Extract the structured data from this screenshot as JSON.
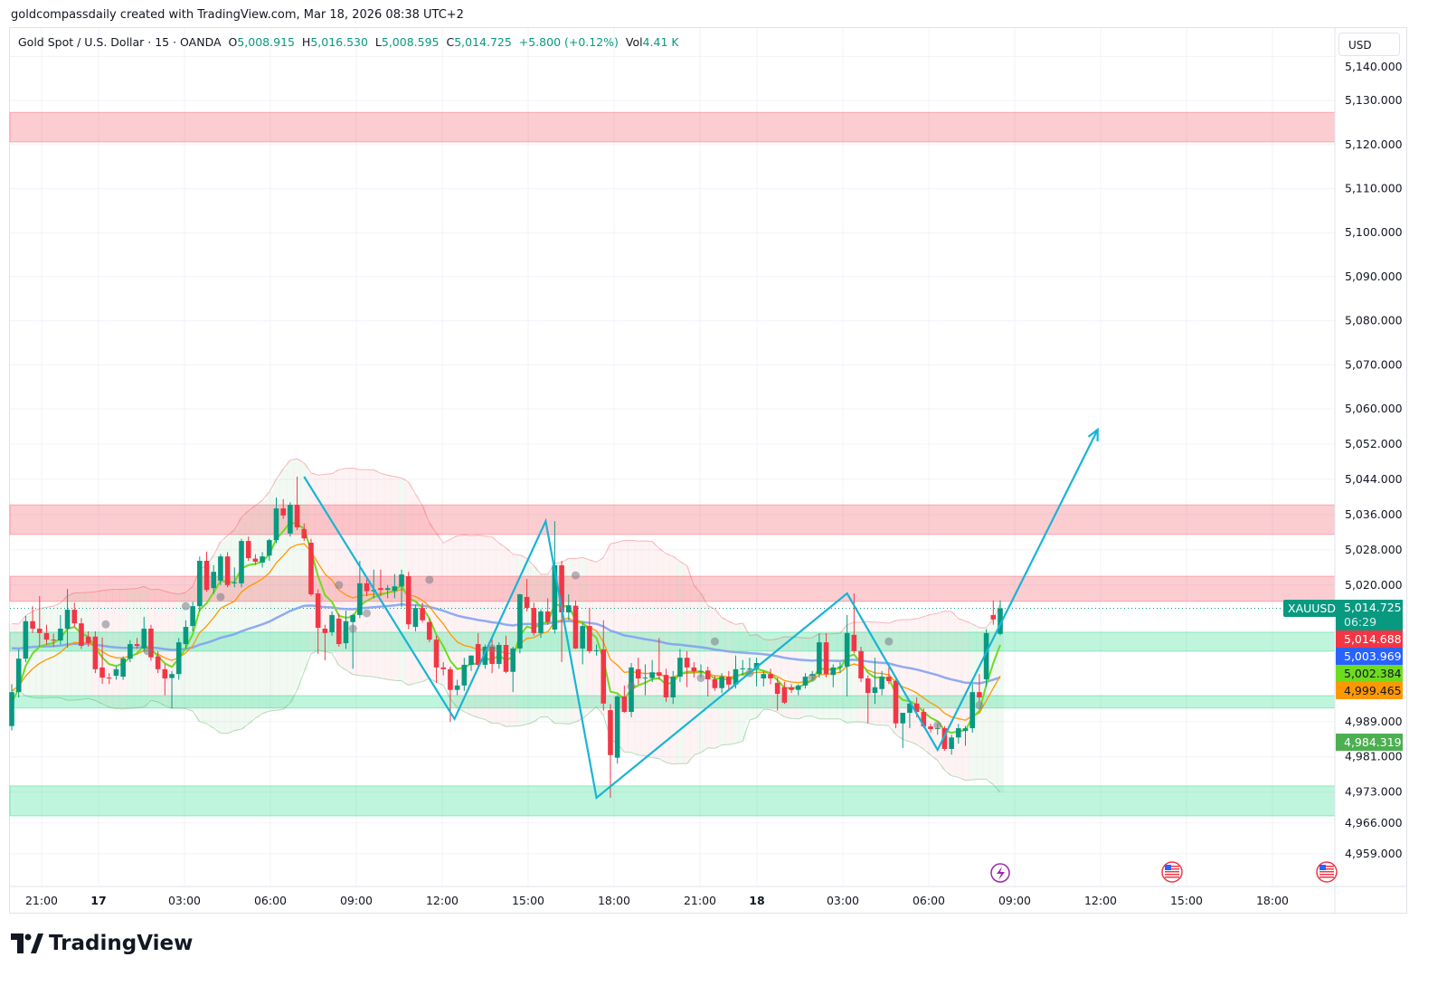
{
  "credit": "goldcompassdaily created with TradingView.com, Mar 18, 2026 08:38 UTC+2",
  "legend": {
    "symbol": "Gold Spot / U.S. Dollar · 15 · OANDA",
    "o_label": "O",
    "o": "5,008.915",
    "h_label": "H",
    "h": "5,016.530",
    "l_label": "L",
    "l": "5,008.595",
    "c_label": "C",
    "c": "5,014.725",
    "change": "+5.800 (+0.12%)",
    "vol_label": "Vol",
    "vol": "4.41 K"
  },
  "currency_button": "USD",
  "price_tags": {
    "symbol": "XAUUSD",
    "last": "5,014.725",
    "countdown": "06:29",
    "bb_upper": "5,014.688",
    "ema_slow": "5,003.969",
    "ema_fast": "5,002.384",
    "ema_mid": "4,999.465",
    "bb_lower": "4,984.319"
  },
  "brand": "TradingView",
  "colors": {
    "up": "#089981",
    "down": "#F23645",
    "ema_fast": "#6EDC1E",
    "ema_mid": "#FF9800",
    "ema_slow": "#7E9EF0",
    "zigzag": "#18B4D6",
    "supply_zone": "#F7A1A8",
    "demand_zone": "#86EBBA",
    "tag_bb_upper": "#F23645",
    "tag_ema_slow": "#2962FF",
    "tag_ema_fast": "#6EDC1E",
    "tag_ema_mid": "#FF9800",
    "tag_bb_lower": "#4CAF50"
  },
  "chart_data": {
    "type": "candlestick",
    "interval": "15",
    "y_ticks": [
      "5,140.000",
      "5,130.000",
      "5,120.000",
      "5,110.000",
      "5,100.000",
      "5,090.000",
      "5,080.000",
      "5,070.000",
      "5,060.000",
      "5,052.000",
      "5,044.000",
      "5,036.000",
      "5,028.000",
      "5,020.000",
      "4,989.000",
      "4,981.000",
      "4,973.000",
      "4,966.000",
      "4,959.000"
    ],
    "y_tick_values": [
      5140,
      5130,
      5120,
      5110,
      5100,
      5090,
      5080,
      5070,
      5060,
      5052,
      5044,
      5036,
      5028,
      5020,
      4989,
      4981,
      4973,
      4966,
      4959
    ],
    "x_ticks": [
      "21:00",
      "17",
      "03:00",
      "06:00",
      "09:00",
      "12:00",
      "15:00",
      "18:00",
      "21:00",
      "18",
      "03:00",
      "06:00",
      "09:00",
      "12:00",
      "15:00",
      "18:00"
    ],
    "ylim": [
      4952,
      5143
    ],
    "grid": true,
    "ohlc": [
      [
        4988.0,
        4997.5,
        4987.0,
        4995.7
      ],
      [
        4995.7,
        5005.4,
        4994.5,
        5003.3
      ],
      [
        5003.3,
        5013.0,
        5002.5,
        5011.8
      ],
      [
        5011.8,
        5015.2,
        5009.1,
        5010.1
      ],
      [
        5010.1,
        5017.5,
        5006.0,
        5009.1
      ],
      [
        5009.1,
        5011.0,
        5006.5,
        5007.6
      ],
      [
        5007.6,
        5009.0,
        5006.0,
        5007.4
      ],
      [
        5007.4,
        5013.2,
        5006.5,
        5010.1
      ],
      [
        5010.1,
        5019.1,
        5005.8,
        5014.4
      ],
      [
        5014.4,
        5016.0,
        5010.5,
        5011.3
      ],
      [
        5011.3,
        5012.5,
        5005.5,
        5006.2
      ],
      [
        5008.3,
        5009.5,
        5006.0,
        5006.8
      ],
      [
        5008.3,
        5009.5,
        5000.0,
        5000.9
      ],
      [
        5001.3,
        5008.1,
        4997.6,
        4999.0
      ],
      [
        4999.0,
        5000.0,
        4997.5,
        4998.9
      ],
      [
        4999.4,
        5001.5,
        4998.5,
        5000.9
      ],
      [
        4999.2,
        5003.8,
        4998.5,
        5003.3
      ],
      [
        5003.3,
        5007.5,
        5002.5,
        5006.6
      ],
      [
        5006.6,
        5008.0,
        5005.5,
        5006.2
      ],
      [
        5005.6,
        5012.8,
        5004.8,
        5010.1
      ],
      [
        5010.1,
        5011.0,
        5002.8,
        5003.6
      ],
      [
        5003.8,
        5005.0,
        5000.0,
        5000.9
      ],
      [
        5000.9,
        5002.0,
        4995.0,
        4998.8
      ],
      [
        4998.9,
        5000.5,
        4992.0,
        4999.8
      ],
      [
        4999.8,
        5008.0,
        4998.5,
        5007.0
      ],
      [
        5006.6,
        5012.0,
        5005.5,
        5010.5
      ],
      [
        5010.7,
        5016.2,
        5009.5,
        5015.2
      ],
      [
        5015.2,
        5026.5,
        5014.0,
        5025.5
      ],
      [
        5025.5,
        5027.6,
        5018.5,
        5018.9
      ],
      [
        5019.3,
        5024.5,
        5018.0,
        5023.0
      ],
      [
        5021.0,
        5027.0,
        5020.0,
        5026.5
      ],
      [
        5026.5,
        5027.5,
        5019.5,
        5020.0
      ],
      [
        5020.6,
        5024.0,
        5019.5,
        5020.6
      ],
      [
        5020.4,
        5030.5,
        5019.5,
        5030.0
      ],
      [
        5030.0,
        5031.0,
        5025.5,
        5026.1
      ],
      [
        5026.0,
        5027.0,
        5024.5,
        5025.3
      ],
      [
        5025.1,
        5027.5,
        5024.0,
        5026.5
      ],
      [
        5026.7,
        5030.5,
        5025.5,
        5030.2
      ],
      [
        5030.2,
        5039.9,
        5029.5,
        5037.4
      ],
      [
        5037.4,
        5039.5,
        5035.0,
        5035.8
      ],
      [
        5031.7,
        5038.8,
        5031.0,
        5038.2
      ],
      [
        5038.2,
        5044.6,
        5032.5,
        5033.1
      ],
      [
        5032.7,
        5034.0,
        5030.0,
        5030.6
      ],
      [
        5029.6,
        5030.5,
        5017.5,
        5017.9
      ],
      [
        5018.1,
        5019.0,
        5004.4,
        5010.3
      ],
      [
        5010.1,
        5011.0,
        5002.9,
        5009.1
      ],
      [
        5009.3,
        5014.0,
        5008.5,
        5013.2
      ],
      [
        5012.4,
        5013.5,
        5006.0,
        5006.6
      ],
      [
        5006.8,
        5014.2,
        5005.5,
        5011.8
      ],
      [
        5011.6,
        5013.5,
        5001.0,
        5013.2
      ],
      [
        5013.2,
        5025.5,
        5012.5,
        5020.4
      ],
      [
        5020.4,
        5022.0,
        5017.5,
        5018.6
      ],
      [
        5018.6,
        5023.5,
        5017.0,
        5018.9
      ],
      [
        5019.3,
        5023.5,
        5017.5,
        5018.9
      ],
      [
        5018.9,
        5020.0,
        5017.0,
        5019.3
      ],
      [
        5018.7,
        5022.5,
        5017.0,
        5019.7
      ],
      [
        5019.7,
        5023.5,
        5015.0,
        5022.4
      ],
      [
        5022.0,
        5023.0,
        5010.0,
        5011.1
      ],
      [
        5010.5,
        5015.5,
        5009.5,
        5014.8
      ],
      [
        5014.8,
        5016.0,
        5011.5,
        5012.0
      ],
      [
        5011.6,
        5012.5,
        5007.0,
        5007.6
      ],
      [
        5007.6,
        5008.5,
        4997.8,
        5001.3
      ],
      [
        5001.3,
        5002.5,
        4999.5,
        5000.9
      ],
      [
        5000.9,
        5001.5,
        4988.9,
        4996.2
      ],
      [
        4996.2,
        4998.5,
        4995.0,
        4997.2
      ],
      [
        4997.2,
        5003.5,
        4996.0,
        5001.9
      ],
      [
        5001.9,
        5004.0,
        5000.5,
        5004.0
      ],
      [
        5006.6,
        5009.1,
        5001.0,
        5001.9
      ],
      [
        5001.9,
        5006.5,
        5001.0,
        5006.0
      ],
      [
        5006.0,
        5008.0,
        5000.0,
        5002.1
      ],
      [
        5002.1,
        5007.0,
        5001.0,
        5006.4
      ],
      [
        5006.4,
        5008.5,
        5000.0,
        5000.3
      ],
      [
        5000.3,
        5006.0,
        4995.7,
        5005.6
      ],
      [
        5005.6,
        5018.0,
        5004.5,
        5017.9
      ],
      [
        5017.3,
        5021.4,
        5014.0,
        5014.8
      ],
      [
        5014.8,
        5016.0,
        5008.5,
        5009.1
      ],
      [
        5009.1,
        5014.5,
        5008.0,
        5014.0
      ],
      [
        5014.0,
        5017.0,
        5011.0,
        5011.6
      ],
      [
        5009.9,
        5034.5,
        5009.0,
        5024.5
      ],
      [
        5024.5,
        5025.5,
        5002.5,
        5013.8
      ],
      [
        5013.8,
        5017.9,
        5012.0,
        5015.4
      ],
      [
        5015.3,
        5016.5,
        5005.5,
        5005.6
      ],
      [
        5005.6,
        5011.5,
        5002.0,
        5010.7
      ],
      [
        5010.7,
        5014.8,
        5004.5,
        5005.0
      ],
      [
        5005.0,
        5006.5,
        5004.0,
        5005.2
      ],
      [
        5005.4,
        5012.0,
        4991.5,
        4993.1
      ],
      [
        4991.6,
        4993.0,
        4971.7,
        4981.4
      ],
      [
        4980.8,
        4995.0,
        4979.5,
        4994.7
      ],
      [
        4994.7,
        4997.2,
        4991.0,
        4991.2
      ],
      [
        4991.2,
        5002.3,
        4990.0,
        5001.3
      ],
      [
        5000.9,
        5003.5,
        4997.5,
        4998.8
      ],
      [
        4998.9,
        5002.0,
        4995.0,
        4999.0
      ],
      [
        4998.9,
        5003.0,
        4998.0,
        5000.2
      ],
      [
        5000.2,
        5008.0,
        4998.5,
        4999.4
      ],
      [
        4999.6,
        5001.0,
        4993.5,
        4994.5
      ],
      [
        4994.5,
        5000.5,
        4993.0,
        4999.2
      ],
      [
        4999.2,
        5005.5,
        4998.0,
        5003.5
      ],
      [
        5003.5,
        5005.0,
        4996.8,
        5001.3
      ],
      [
        5001.3,
        5002.5,
        4999.0,
        5000.4
      ],
      [
        5000.4,
        5002.0,
        4999.0,
        5000.5
      ],
      [
        5000.6,
        5001.5,
        4994.7,
        4998.6
      ],
      [
        4998.6,
        4999.5,
        4996.0,
        4996.6
      ],
      [
        4996.6,
        5000.0,
        4995.5,
        4999.2
      ],
      [
        4999.2,
        5000.5,
        4996.0,
        4997.4
      ],
      [
        4997.4,
        5004.0,
        4996.5,
        5000.9
      ],
      [
        5000.9,
        5003.0,
        4999.5,
        5001.1
      ],
      [
        5001.1,
        5003.5,
        5000.0,
        5001.1
      ],
      [
        5001.1,
        5003.5,
        4997.0,
        5002.3
      ],
      [
        4998.8,
        5000.5,
        4997.0,
        4999.8
      ],
      [
        4999.8,
        5001.0,
        4997.5,
        4998.8
      ],
      [
        4997.8,
        4999.0,
        4991.5,
        4995.3
      ],
      [
        4996.8,
        4998.0,
        4993.0,
        4993.3
      ],
      [
        4996.8,
        4997.5,
        4995.5,
        4996.2
      ],
      [
        4996.2,
        4997.5,
        4995.0,
        4997.2
      ],
      [
        4997.2,
        5000.0,
        4996.5,
        4999.2
      ],
      [
        4999.4,
        5000.5,
        4998.5,
        4999.8
      ],
      [
        4999.8,
        5009.0,
        4999.0,
        5007.0
      ],
      [
        5007.0,
        5009.1,
        4999.0,
        4999.8
      ],
      [
        4999.6,
        5002.0,
        4996.8,
        5001.3
      ],
      [
        5001.3,
        5002.5,
        5000.0,
        5001.5
      ],
      [
        5001.5,
        5013.2,
        4994.7,
        5009.1
      ],
      [
        5008.7,
        5018.1,
        5004.5,
        5005.0
      ],
      [
        5005.0,
        5006.0,
        4998.0,
        4998.8
      ],
      [
        4998.8,
        4999.5,
        4988.6,
        4995.5
      ],
      [
        4995.5,
        5003.5,
        4993.0,
        4996.8
      ],
      [
        4996.4,
        5000.5,
        4995.0,
        4999.2
      ],
      [
        4999.2,
        5001.3,
        4997.5,
        4998.2
      ],
      [
        4998.2,
        4999.0,
        4987.5,
        4988.6
      ],
      [
        4988.6,
        4991.0,
        4983.0,
        4991.0
      ],
      [
        4991.0,
        4993.8,
        4987.5,
        4993.1
      ],
      [
        4993.1,
        4994.5,
        4990.0,
        4991.2
      ],
      [
        4991.2,
        4992.0,
        4987.5,
        4987.9
      ],
      [
        4987.9,
        4988.5,
        4986.5,
        4987.3
      ],
      [
        4987.3,
        4988.5,
        4986.0,
        4987.5
      ],
      [
        4987.5,
        4988.0,
        4982.4,
        4982.8
      ],
      [
        4982.8,
        4986.0,
        4981.5,
        4985.4
      ],
      [
        4985.4,
        4988.5,
        4984.0,
        4987.5
      ],
      [
        4986.9,
        4988.0,
        4983.5,
        4987.5
      ],
      [
        4987.5,
        4997.5,
        4986.5,
        4995.7
      ],
      [
        4995.7,
        4999.8,
        4993.5,
        4994.5
      ],
      [
        4998.6,
        5010.0,
        4997.0,
        5009.1
      ],
      [
        5013.2,
        5016.5,
        5011.0,
        5012.2
      ],
      [
        5008.915,
        5016.53,
        5008.595,
        5014.725
      ]
    ],
    "zones": [
      {
        "kind": "supply",
        "from": 5120.6,
        "to": 5127.3
      },
      {
        "kind": "supply",
        "from": 5031.5,
        "to": 5038.2
      },
      {
        "kind": "supply",
        "from": 5016.3,
        "to": 5022.0
      },
      {
        "kind": "demand",
        "from": 5005.0,
        "to": 5009.3
      },
      {
        "kind": "demand",
        "from": 4992.1,
        "to": 4994.9
      },
      {
        "kind": "demand",
        "from": 4967.6,
        "to": 4974.4
      }
    ],
    "zigzag": [
      [
        42,
        5044.6
      ],
      [
        63.6,
        4989.6
      ],
      [
        76.7,
        5034.5
      ],
      [
        84,
        4971.7
      ],
      [
        120,
        5018.1
      ],
      [
        133,
        4982.6
      ],
      [
        156,
        5055.3
      ]
    ],
    "markers": [
      [
        13.5,
        5011.1
      ],
      [
        19.5,
        5005.0
      ],
      [
        25,
        5015.2
      ],
      [
        30,
        5017.3
      ],
      [
        47,
        5020.0
      ],
      [
        49,
        5010.1
      ],
      [
        51,
        5013.6
      ],
      [
        60,
        5021.2
      ],
      [
        69,
        5005.6
      ],
      [
        81,
        5022.2
      ],
      [
        89,
        4997.0
      ],
      [
        99,
        4998.9
      ],
      [
        101,
        5007.2
      ],
      [
        106,
        5000.0
      ],
      [
        115,
        4999.0
      ],
      [
        126,
        5007.2
      ],
      [
        133,
        4988.2
      ],
      [
        139,
        4992.7
      ]
    ],
    "events": [
      "lightning-event",
      "us-flag-event",
      "us-flag-event"
    ]
  }
}
